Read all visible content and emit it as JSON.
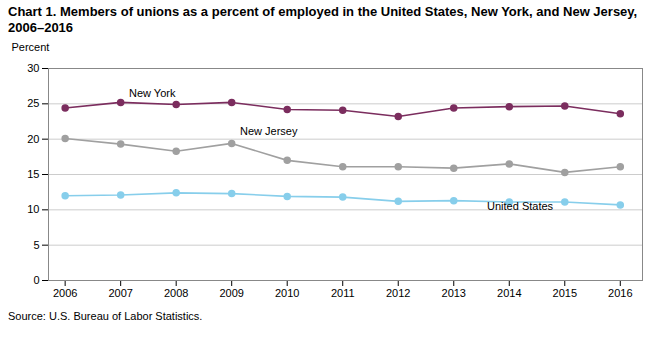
{
  "chart_data": {
    "type": "line",
    "title": "Chart 1. Members of unions as a percent of employed in the United States, New York, and New Jersey, 2006–2016",
    "ylabel": "Percent",
    "source": "Source: U.S. Bureau of Labor Statistics.",
    "x": [
      2006,
      2007,
      2008,
      2009,
      2010,
      2011,
      2012,
      2013,
      2014,
      2015,
      2016
    ],
    "series": [
      {
        "name": "New York",
        "color": "#7b2d5e",
        "marker": "circle",
        "values": [
          24.4,
          25.2,
          24.9,
          25.2,
          24.2,
          24.1,
          23.2,
          24.4,
          24.6,
          24.7,
          23.6
        ]
      },
      {
        "name": "New Jersey",
        "color": "#a0a0a0",
        "marker": "circle",
        "values": [
          20.1,
          19.3,
          18.3,
          19.4,
          17.0,
          16.1,
          16.1,
          15.9,
          16.5,
          15.3,
          16.1
        ]
      },
      {
        "name": "United States",
        "color": "#87ceeb",
        "marker": "circle",
        "values": [
          12.0,
          12.1,
          12.4,
          12.3,
          11.9,
          11.8,
          11.2,
          11.3,
          11.1,
          11.1,
          10.7
        ]
      }
    ],
    "annotations": [
      {
        "text": "New York",
        "x": 2007.15,
        "y": 26.0
      },
      {
        "text": "New Jersey",
        "x": 2009.15,
        "y": 20.6
      },
      {
        "text": "United States",
        "x": 2013.6,
        "y": 10.0
      }
    ],
    "xlim": [
      2005.7,
      2016.4
    ],
    "xticks": [
      2006,
      2007,
      2008,
      2009,
      2010,
      2011,
      2012,
      2013,
      2014,
      2015,
      2016
    ],
    "ylim": [
      0,
      30
    ],
    "yticks": [
      0,
      5,
      10,
      15,
      20,
      25,
      30
    ],
    "grid": true
  }
}
